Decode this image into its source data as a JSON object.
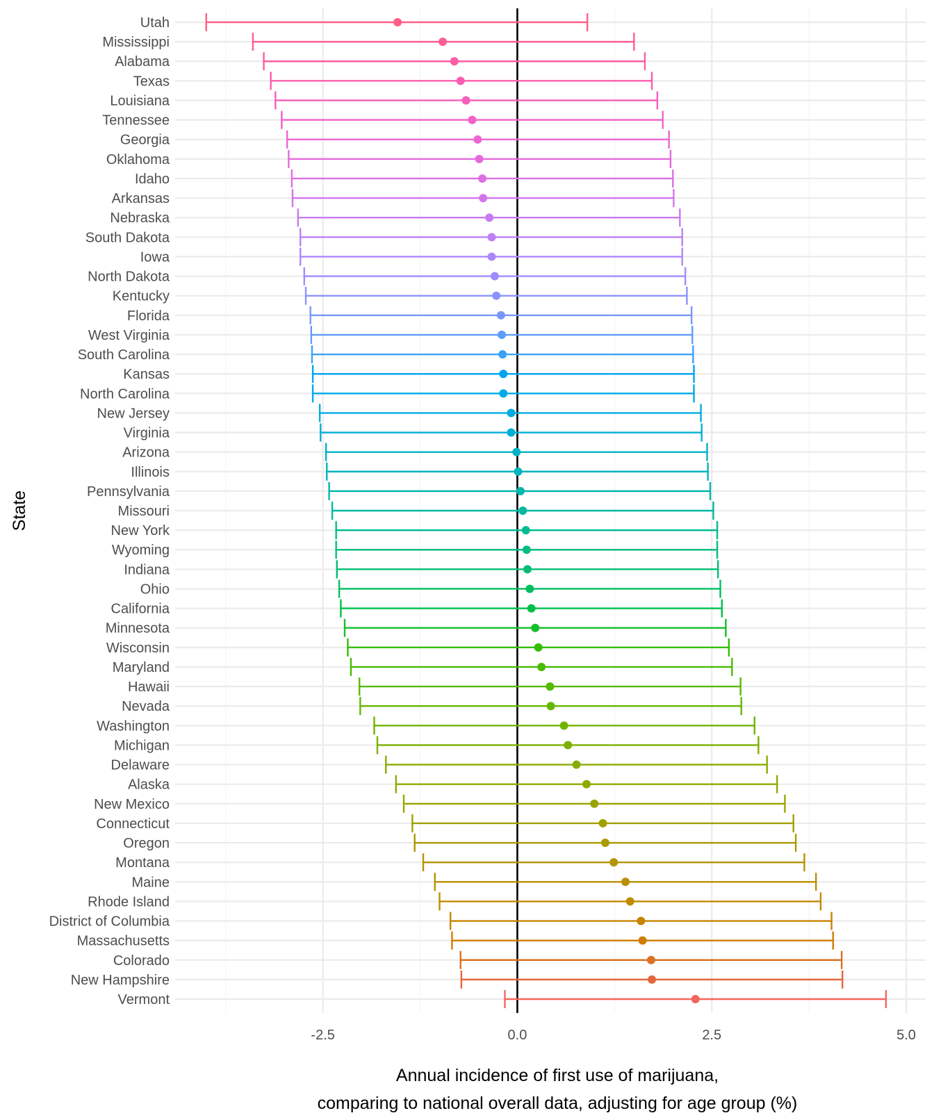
{
  "chart_data": {
    "type": "errorbar",
    "xlabel": [
      "Annual incidence of first use of marijuana,",
      "comparing to national overall data, adjusting for age group (%)"
    ],
    "ylabel": "State",
    "xlim": [
      -4.4,
      5.25
    ],
    "x_ticks": [
      -2.5,
      0.0,
      2.5,
      5.0
    ],
    "x_tick_labels": [
      "-2.5",
      "0.0",
      "2.5",
      "5.0"
    ],
    "reference_line_x": 0,
    "grid": true,
    "legend": "none",
    "series": [
      {
        "state": "Utah",
        "estimate": -1.54,
        "lower": -4.0,
        "upper": 0.9,
        "color": "#FF5E85"
      },
      {
        "state": "Mississippi",
        "estimate": -0.96,
        "lower": -3.4,
        "upper": 1.5,
        "color": "#FF5D94"
      },
      {
        "state": "Alabama",
        "estimate": -0.81,
        "lower": -3.26,
        "upper": 1.64,
        "color": "#FD5CA2"
      },
      {
        "state": "Texas",
        "estimate": -0.73,
        "lower": -3.17,
        "upper": 1.73,
        "color": "#FB5CAF"
      },
      {
        "state": "Louisiana",
        "estimate": -0.66,
        "lower": -3.11,
        "upper": 1.8,
        "color": "#F75EBB"
      },
      {
        "state": "Tennessee",
        "estimate": -0.58,
        "lower": -3.03,
        "upper": 1.87,
        "color": "#F261C7"
      },
      {
        "state": "Georgia",
        "estimate": -0.51,
        "lower": -2.96,
        "upper": 1.95,
        "color": "#EC65D1"
      },
      {
        "state": "Oklahoma",
        "estimate": -0.49,
        "lower": -2.94,
        "upper": 1.97,
        "color": "#E46ADB"
      },
      {
        "state": "Idaho",
        "estimate": -0.45,
        "lower": -2.9,
        "upper": 2.0,
        "color": "#DC6FE4"
      },
      {
        "state": "Arkansas",
        "estimate": -0.44,
        "lower": -2.89,
        "upper": 2.01,
        "color": "#D374EB"
      },
      {
        "state": "Nebraska",
        "estimate": -0.36,
        "lower": -2.82,
        "upper": 2.09,
        "color": "#C87AF2"
      },
      {
        "state": "South Dakota",
        "estimate": -0.33,
        "lower": -2.79,
        "upper": 2.12,
        "color": "#BC80F7"
      },
      {
        "state": "Iowa",
        "estimate": -0.33,
        "lower": -2.79,
        "upper": 2.12,
        "color": "#AE86FB"
      },
      {
        "state": "North Dakota",
        "estimate": -0.29,
        "lower": -2.74,
        "upper": 2.16,
        "color": "#9E8CFE"
      },
      {
        "state": "Kentucky",
        "estimate": -0.27,
        "lower": -2.72,
        "upper": 2.18,
        "color": "#8C92FF"
      },
      {
        "state": "Florida",
        "estimate": -0.21,
        "lower": -2.66,
        "upper": 2.24,
        "color": "#7897FE"
      },
      {
        "state": "West Virginia",
        "estimate": -0.2,
        "lower": -2.65,
        "upper": 2.25,
        "color": "#5F9CFB"
      },
      {
        "state": "South Carolina",
        "estimate": -0.19,
        "lower": -2.64,
        "upper": 2.26,
        "color": "#3CA1F6"
      },
      {
        "state": "Kansas",
        "estimate": -0.18,
        "lower": -2.63,
        "upper": 2.27,
        "color": "#00A5F0"
      },
      {
        "state": "North Carolina",
        "estimate": -0.18,
        "lower": -2.63,
        "upper": 2.27,
        "color": "#00A9E8"
      },
      {
        "state": "New Jersey",
        "estimate": -0.08,
        "lower": -2.54,
        "upper": 2.36,
        "color": "#00ACDF"
      },
      {
        "state": "Virginia",
        "estimate": -0.08,
        "lower": -2.53,
        "upper": 2.37,
        "color": "#00AFD4"
      },
      {
        "state": "Arizona",
        "estimate": -0.01,
        "lower": -2.46,
        "upper": 2.44,
        "color": "#00B2C8"
      },
      {
        "state": "Illinois",
        "estimate": 0.01,
        "lower": -2.45,
        "upper": 2.45,
        "color": "#00B5BC"
      },
      {
        "state": "Pennsylvania",
        "estimate": 0.04,
        "lower": -2.42,
        "upper": 2.48,
        "color": "#00B7AF"
      },
      {
        "state": "Missouri",
        "estimate": 0.07,
        "lower": -2.38,
        "upper": 2.52,
        "color": "#00B9A1"
      },
      {
        "state": "New York",
        "estimate": 0.11,
        "lower": -2.33,
        "upper": 2.57,
        "color": "#00BB92"
      },
      {
        "state": "Wyoming",
        "estimate": 0.12,
        "lower": -2.33,
        "upper": 2.57,
        "color": "#00BD83"
      },
      {
        "state": "Indiana",
        "estimate": 0.13,
        "lower": -2.32,
        "upper": 2.58,
        "color": "#00BE72"
      },
      {
        "state": "Ohio",
        "estimate": 0.16,
        "lower": -2.29,
        "upper": 2.61,
        "color": "#00BF60"
      },
      {
        "state": "California",
        "estimate": 0.18,
        "lower": -2.27,
        "upper": 2.63,
        "color": "#00C049"
      },
      {
        "state": "Minnesota",
        "estimate": 0.23,
        "lower": -2.22,
        "upper": 2.68,
        "color": "#14C02A"
      },
      {
        "state": "Wisconsin",
        "estimate": 0.27,
        "lower": -2.18,
        "upper": 2.72,
        "color": "#32BF00"
      },
      {
        "state": "Maryland",
        "estimate": 0.31,
        "lower": -2.14,
        "upper": 2.76,
        "color": "#46BD00"
      },
      {
        "state": "Hawaii",
        "estimate": 0.42,
        "lower": -2.03,
        "upper": 2.87,
        "color": "#56BA00"
      },
      {
        "state": "Nevada",
        "estimate": 0.43,
        "lower": -2.02,
        "upper": 2.88,
        "color": "#64B700"
      },
      {
        "state": "Washington",
        "estimate": 0.6,
        "lower": -1.84,
        "upper": 3.05,
        "color": "#71B300"
      },
      {
        "state": "Michigan",
        "estimate": 0.65,
        "lower": -1.8,
        "upper": 3.1,
        "color": "#7DB000"
      },
      {
        "state": "Delaware",
        "estimate": 0.76,
        "lower": -1.69,
        "upper": 3.21,
        "color": "#87AC00"
      },
      {
        "state": "Alaska",
        "estimate": 0.89,
        "lower": -1.56,
        "upper": 3.34,
        "color": "#91A800"
      },
      {
        "state": "New Mexico",
        "estimate": 0.99,
        "lower": -1.46,
        "upper": 3.44,
        "color": "#9AA400"
      },
      {
        "state": "Connecticut",
        "estimate": 1.1,
        "lower": -1.35,
        "upper": 3.55,
        "color": "#A29F00"
      },
      {
        "state": "Oregon",
        "estimate": 1.13,
        "lower": -1.32,
        "upper": 3.58,
        "color": "#AA9A00"
      },
      {
        "state": "Montana",
        "estimate": 1.24,
        "lower": -1.21,
        "upper": 3.69,
        "color": "#B29500"
      },
      {
        "state": "Maine",
        "estimate": 1.39,
        "lower": -1.06,
        "upper": 3.84,
        "color": "#BA8F00"
      },
      {
        "state": "Rhode Island",
        "estimate": 1.45,
        "lower": -1.0,
        "upper": 3.9,
        "color": "#C18A00"
      },
      {
        "state": "District of Columbia",
        "estimate": 1.59,
        "lower": -0.86,
        "upper": 4.04,
        "color": "#C88400"
      },
      {
        "state": "Massachusetts",
        "estimate": 1.61,
        "lower": -0.84,
        "upper": 4.06,
        "color": "#CF7D00"
      },
      {
        "state": "Colorado",
        "estimate": 1.72,
        "lower": -0.73,
        "upper": 4.17,
        "color": "#DA7020"
      },
      {
        "state": "New Hampshire",
        "estimate": 1.73,
        "lower": -0.72,
        "upper": 4.18,
        "color": "#E4673C"
      },
      {
        "state": "Vermont",
        "estimate": 2.29,
        "lower": -0.16,
        "upper": 4.74,
        "color": "#F2665E"
      }
    ]
  }
}
